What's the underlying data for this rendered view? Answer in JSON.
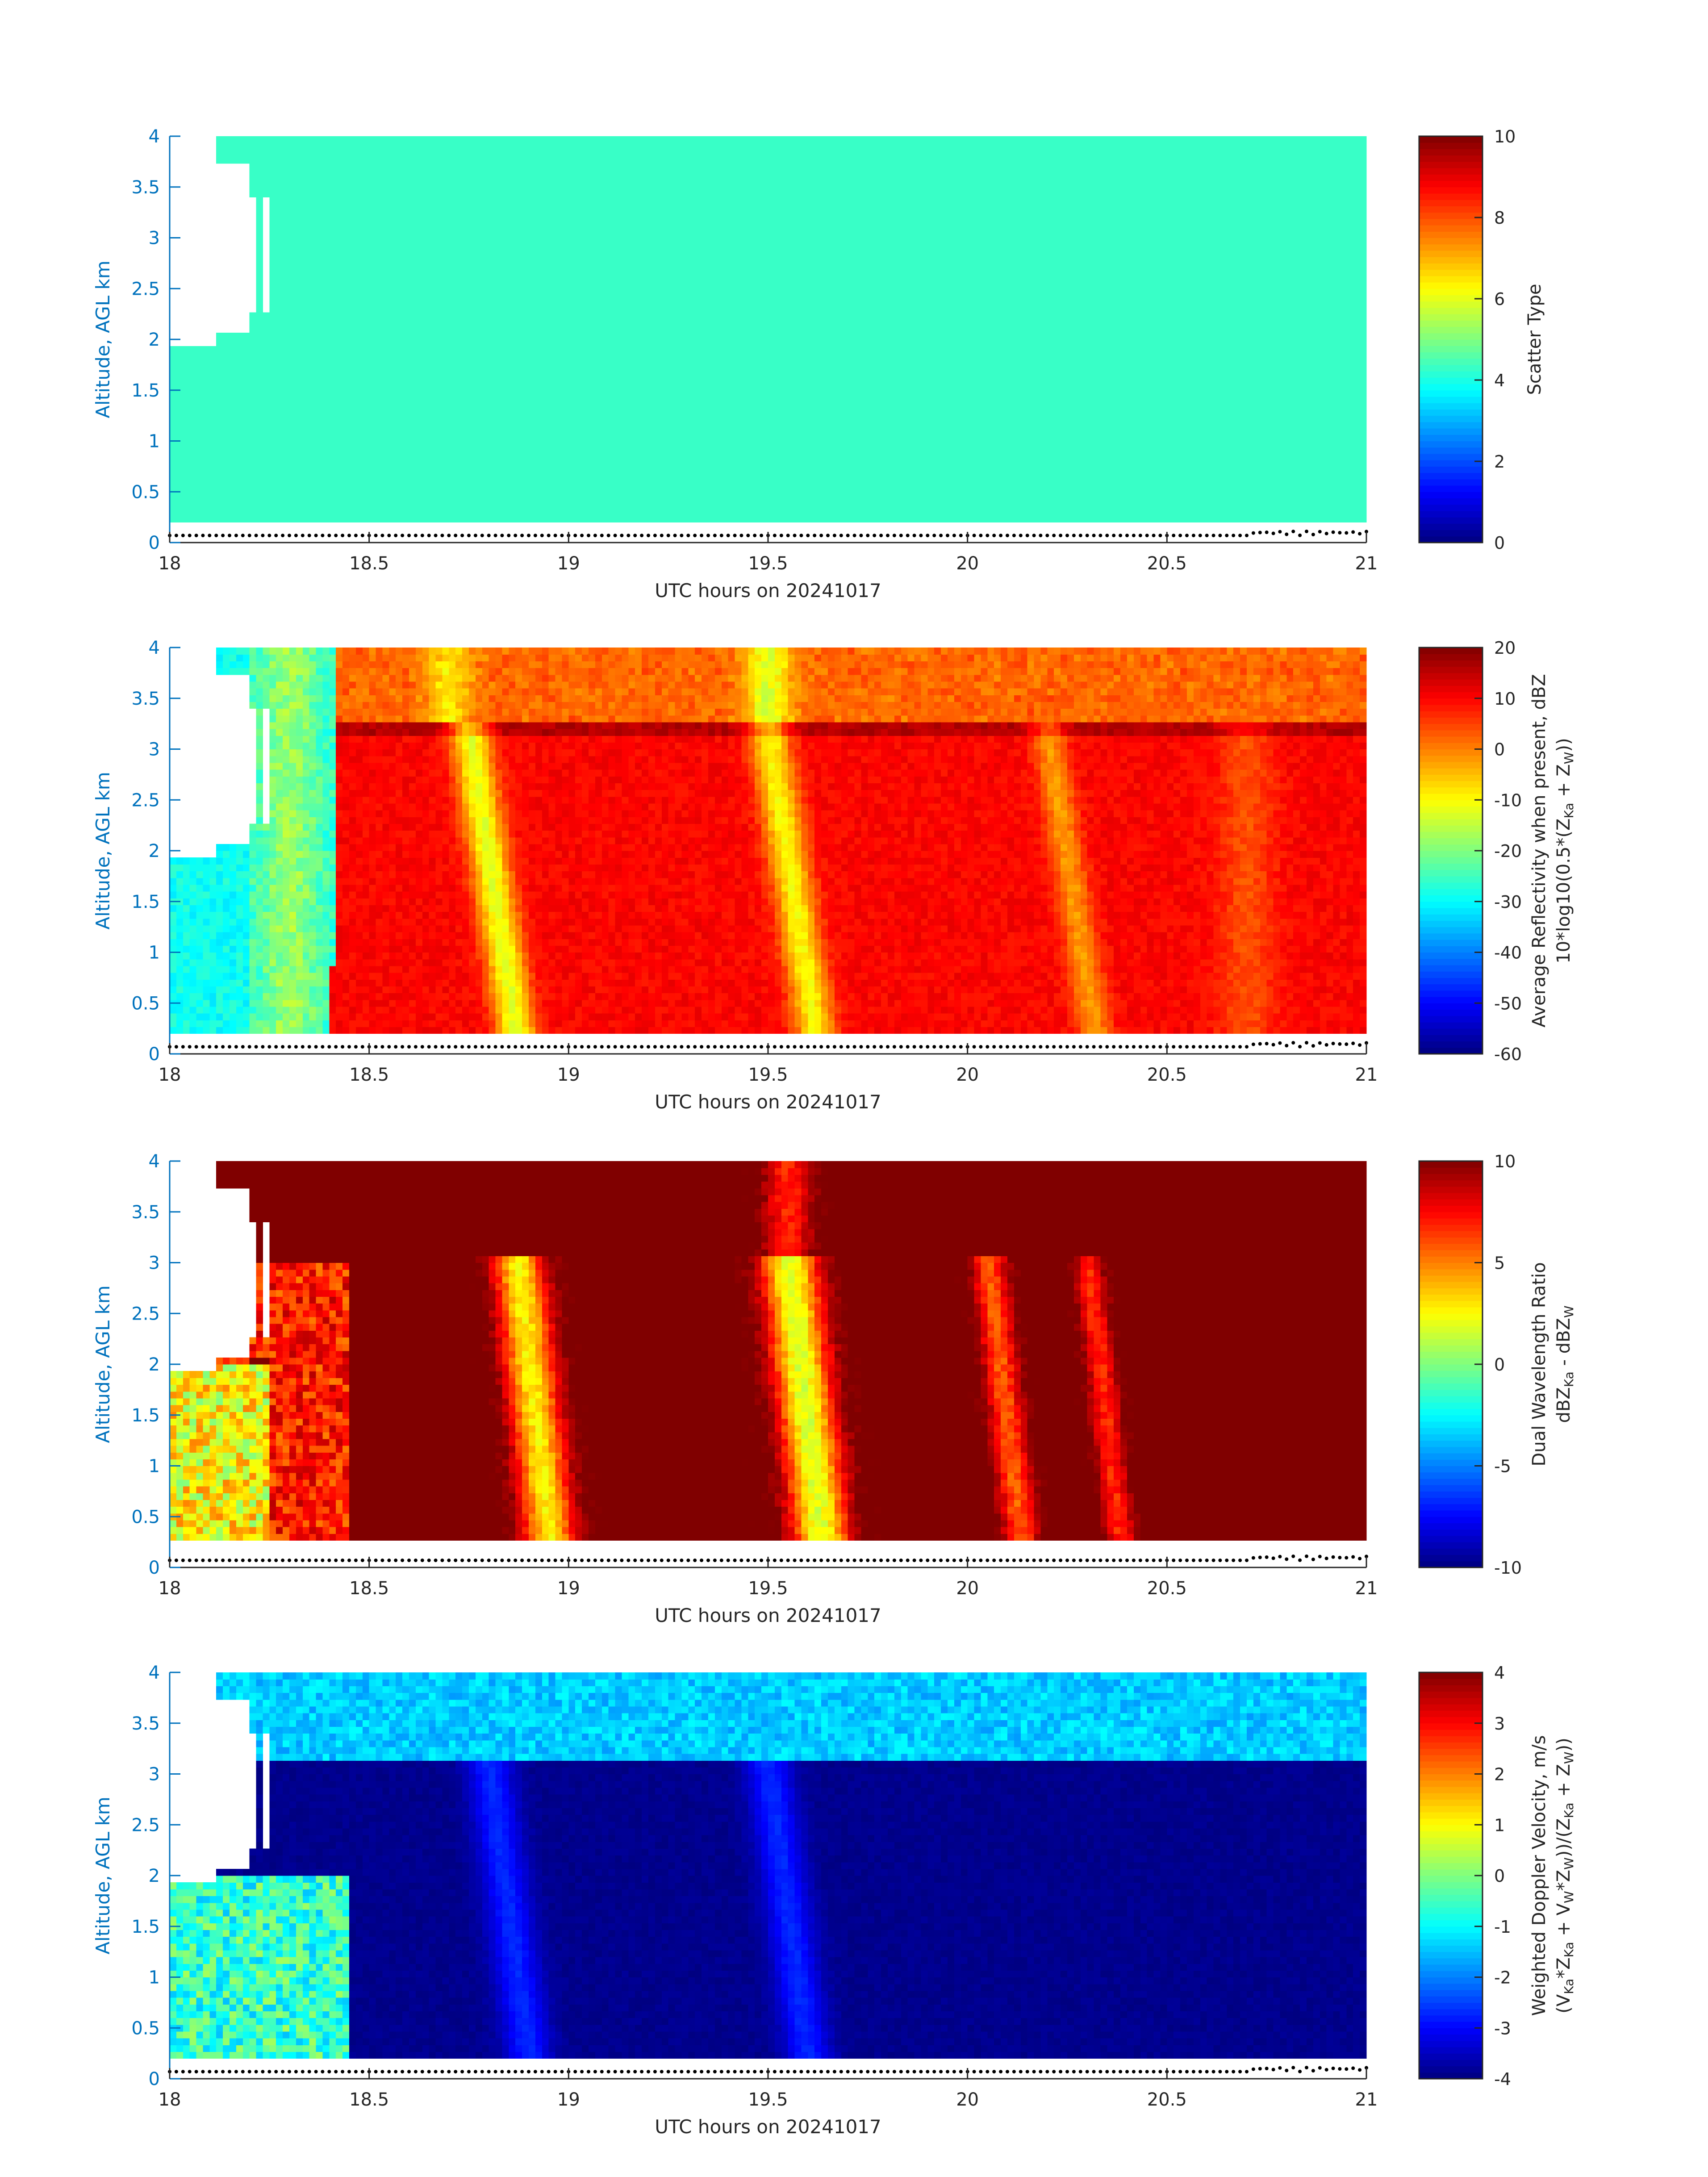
{
  "chart_data": [
    {
      "type": "heatmap",
      "title": "",
      "xlabel": "UTC hours on 20241017",
      "ylabel": "Altitude, AGL km",
      "xlim": [
        18,
        21
      ],
      "ylim": [
        0,
        4
      ],
      "x_ticks": [
        "18",
        "18.5",
        "19",
        "19.5",
        "20",
        "20.5",
        "21"
      ],
      "y_ticks": [
        "0",
        "0.5",
        "1",
        "1.5",
        "2",
        "2.5",
        "3",
        "3.5",
        "4"
      ],
      "colorbar": {
        "label": "Scatter Type",
        "range": [
          0,
          10
        ],
        "ticks": [
          "0",
          "2",
          "4",
          "6",
          "8",
          "10"
        ],
        "colormap": "jet"
      },
      "description_values": {
        "dominant_value": 4.3,
        "data_bottom_km": 0.2,
        "data_start_hour": 18.12
      }
    },
    {
      "type": "heatmap",
      "title": "",
      "xlabel": "UTC hours on 20241017",
      "ylabel": "Altitude, AGL km",
      "xlim": [
        18,
        21
      ],
      "ylim": [
        0,
        4
      ],
      "x_ticks": [
        "18",
        "18.5",
        "19",
        "19.5",
        "20",
        "20.5",
        "21"
      ],
      "y_ticks": [
        "0",
        "0.5",
        "1",
        "1.5",
        "2",
        "2.5",
        "3",
        "3.5",
        "4"
      ],
      "colorbar": {
        "label_line1": "Average Reflectivity when present, dBZ",
        "label_line2": "10*log10(0.5*(Z",
        "label_sub1": "Ka",
        "label_mid": " + Z",
        "label_sub2": "W",
        "label_end": "))",
        "range": [
          -60,
          20
        ],
        "ticks": [
          "-60",
          "-50",
          "-40",
          "-30",
          "-20",
          "-10",
          "0",
          "10",
          "20"
        ],
        "colormap": "jet"
      },
      "description_values": {
        "ice_layer_range_dbz": [
          -35,
          -15
        ],
        "rain_region_range_dbz": [
          5,
          15
        ],
        "bright_bands_hours": [
          18.75,
          19.55,
          20.2
        ],
        "melting_layer_km": 3.2
      }
    },
    {
      "type": "heatmap",
      "title": "",
      "xlabel": "UTC hours on 20241017",
      "ylabel": "Altitude, AGL km",
      "xlim": [
        18,
        21
      ],
      "ylim": [
        0,
        4
      ],
      "x_ticks": [
        "18",
        "18.5",
        "19",
        "19.5",
        "20",
        "20.5",
        "21"
      ],
      "y_ticks": [
        "0",
        "0.5",
        "1",
        "1.5",
        "2",
        "2.5",
        "3",
        "3.5",
        "4"
      ],
      "colorbar": {
        "label_line1": "Dual Wavelength Ratio",
        "label_line2": "dBZ",
        "label_sub1": "Ka",
        "label_mid": " - dBZ",
        "label_sub2": "W",
        "label_end": "",
        "range": [
          -10,
          10
        ],
        "ticks": [
          "-10",
          "-5",
          "0",
          "5",
          "10"
        ],
        "colormap": "jet"
      },
      "description_values": {
        "background_value": 10,
        "bands_hours": [
          18.85,
          19.55
        ]
      }
    },
    {
      "type": "heatmap",
      "title": "",
      "xlabel": "UTC hours on 20241017",
      "ylabel": "Altitude, AGL km",
      "xlim": [
        18,
        21
      ],
      "ylim": [
        0,
        4
      ],
      "x_ticks": [
        "18",
        "18.5",
        "19",
        "19.5",
        "20",
        "20.5",
        "21"
      ],
      "y_ticks": [
        "0",
        "0.5",
        "1",
        "1.5",
        "2",
        "2.5",
        "3",
        "3.5",
        "4"
      ],
      "colorbar": {
        "label_line1": "Weighted Doppler Velocity, m/s",
        "label_line2": "(V",
        "label_sub1": "Ka",
        "label_mid": "*Z",
        "label_sub2": "Ka",
        "label_end": " + V",
        "label_sub3": "W",
        "label_end2": "*Z",
        "label_sub4": "W",
        "label_end3": "))/(Z",
        "label_sub5": "Ka",
        "label_end4": " + Z",
        "label_sub6": "W",
        "label_end5": "))",
        "range": [
          -4,
          4
        ],
        "ticks": [
          "-4",
          "-3",
          "-2",
          "-1",
          "0",
          "1",
          "2",
          "3",
          "4"
        ],
        "colormap": "jet"
      },
      "description_values": {
        "rain_velocity_ms": -4,
        "ice_velocity_ms": -1.5,
        "melting_layer_km": 3.1
      }
    }
  ]
}
